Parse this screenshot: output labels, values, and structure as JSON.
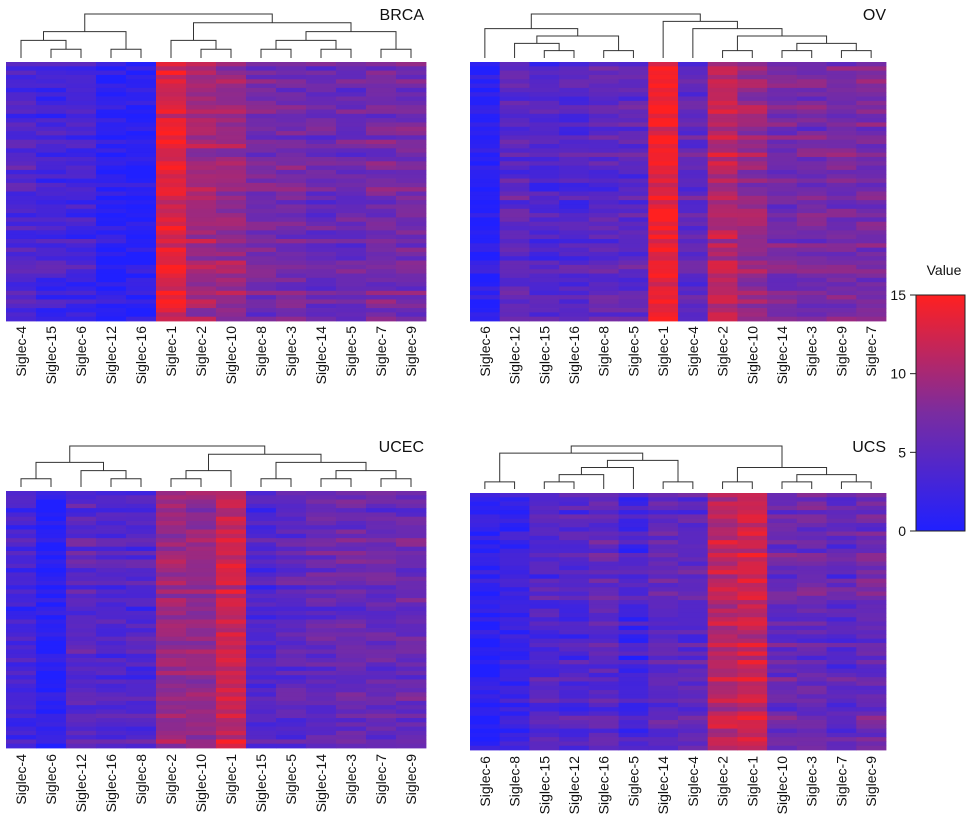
{
  "chart_data": [
    {
      "type": "heatmap",
      "title": "BRCA",
      "columns": [
        "Siglec-4",
        "Siglec-15",
        "Siglec-6",
        "Siglec-12",
        "Siglec-16",
        "Siglec-1",
        "Siglec-2",
        "Siglec-10",
        "Siglec-8",
        "Siglec-3",
        "Siglec-14",
        "Siglec-5",
        "Siglec-7",
        "Siglec-9"
      ],
      "column_means": [
        4,
        3,
        3,
        1,
        1,
        13,
        10,
        9,
        7,
        7,
        6,
        6,
        7,
        7
      ],
      "rows": 60,
      "value_range": [
        0,
        15
      ]
    },
    {
      "type": "heatmap",
      "title": "OV",
      "columns": [
        "Siglec-6",
        "Siglec-12",
        "Siglec-15",
        "Siglec-16",
        "Siglec-8",
        "Siglec-5",
        "Siglec-1",
        "Siglec-4",
        "Siglec-2",
        "Siglec-10",
        "Siglec-14",
        "Siglec-3",
        "Siglec-9",
        "Siglec-7"
      ],
      "column_means": [
        1,
        5,
        4,
        4,
        5,
        5,
        14,
        5,
        11,
        9,
        7,
        7,
        7,
        7
      ],
      "rows": 60,
      "value_range": [
        0,
        15
      ]
    },
    {
      "type": "heatmap",
      "title": "UCEC",
      "columns": [
        "Siglec-4",
        "Siglec-6",
        "Siglec-12",
        "Siglec-16",
        "Siglec-8",
        "Siglec-2",
        "Siglec-10",
        "Siglec-1",
        "Siglec-15",
        "Siglec-5",
        "Siglec-14",
        "Siglec-3",
        "Siglec-7",
        "Siglec-9"
      ],
      "column_means": [
        3,
        1,
        5,
        4,
        4,
        9,
        9,
        12,
        4,
        5,
        6,
        6,
        6,
        6
      ],
      "rows": 60,
      "value_range": [
        0,
        15
      ]
    },
    {
      "type": "heatmap",
      "title": "UCS",
      "columns": [
        "Siglec-6",
        "Siglec-8",
        "Siglec-15",
        "Siglec-12",
        "Siglec-16",
        "Siglec-5",
        "Siglec-14",
        "Siglec-4",
        "Siglec-2",
        "Siglec-1",
        "Siglec-10",
        "Siglec-3",
        "Siglec-7",
        "Siglec-9"
      ],
      "column_means": [
        1,
        2,
        4,
        4,
        5,
        3,
        5,
        5,
        11,
        12,
        6,
        6,
        5,
        6
      ],
      "rows": 60,
      "value_range": [
        0,
        15
      ]
    }
  ],
  "colorbar": {
    "title": "Value",
    "ticks": [
      "0",
      "5",
      "10",
      "15"
    ],
    "tick_values": [
      0,
      5,
      10,
      15
    ],
    "low_color": "#2020ff",
    "mid_color": "#7a2ca0",
    "high_color": "#ff2020"
  }
}
